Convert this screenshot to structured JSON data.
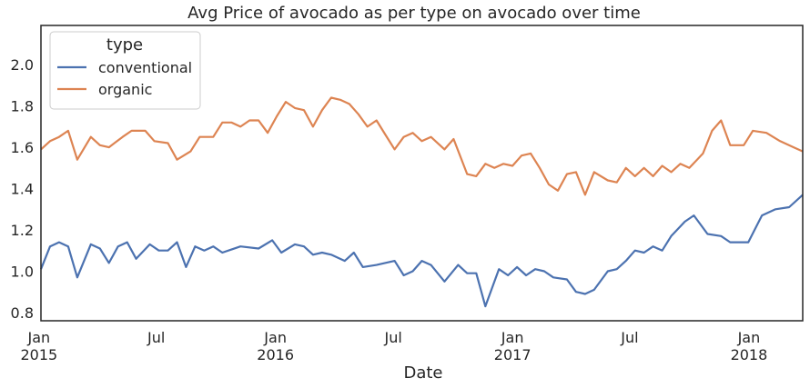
{
  "chart_data": {
    "type": "line",
    "title": "Avg Price of avocado as per type on avocado over time",
    "xlabel": "Date",
    "ylabel": "",
    "ylim": [
      0.76,
      2.19
    ],
    "xlim": [
      "2015-01-04",
      "2018-03-25"
    ],
    "yticks": [
      "0.8",
      "1.0",
      "1.2",
      "1.4",
      "1.6",
      "1.8",
      "2.0"
    ],
    "xticks": [
      {
        "date": "2015-01-01",
        "line1": "Jan",
        "line2": "2015"
      },
      {
        "date": "2015-07-01",
        "line1": "Jul",
        "line2": ""
      },
      {
        "date": "2016-01-01",
        "line1": "Jan",
        "line2": "2016"
      },
      {
        "date": "2016-07-01",
        "line1": "Jul",
        "line2": ""
      },
      {
        "date": "2017-01-01",
        "line1": "Jan",
        "line2": "2017"
      },
      {
        "date": "2017-07-01",
        "line1": "Jul",
        "line2": ""
      },
      {
        "date": "2018-01-01",
        "line1": "Jan",
        "line2": "2018"
      }
    ],
    "grid": false,
    "legend": {
      "title": "type",
      "placement": "top-left"
    },
    "series": [
      {
        "name": "conventional",
        "color": "#4c72b0",
        "points": [
          [
            "2015-01-04",
            1.01
          ],
          [
            "2015-01-18",
            1.12
          ],
          [
            "2015-02-01",
            1.14
          ],
          [
            "2015-02-15",
            1.12
          ],
          [
            "2015-03-01",
            0.97
          ],
          [
            "2015-03-22",
            1.13
          ],
          [
            "2015-04-05",
            1.11
          ],
          [
            "2015-04-19",
            1.04
          ],
          [
            "2015-05-03",
            1.12
          ],
          [
            "2015-05-17",
            1.14
          ],
          [
            "2015-05-31",
            1.06
          ],
          [
            "2015-06-21",
            1.13
          ],
          [
            "2015-07-05",
            1.1
          ],
          [
            "2015-07-19",
            1.1
          ],
          [
            "2015-08-02",
            1.14
          ],
          [
            "2015-08-16",
            1.02
          ],
          [
            "2015-08-30",
            1.12
          ],
          [
            "2015-09-13",
            1.1
          ],
          [
            "2015-09-27",
            1.12
          ],
          [
            "2015-10-11",
            1.09
          ],
          [
            "2015-11-08",
            1.12
          ],
          [
            "2015-12-06",
            1.11
          ],
          [
            "2015-12-27",
            1.15
          ],
          [
            "2016-01-10",
            1.09
          ],
          [
            "2016-01-31",
            1.13
          ],
          [
            "2016-02-14",
            1.12
          ],
          [
            "2016-02-28",
            1.08
          ],
          [
            "2016-03-13",
            1.09
          ],
          [
            "2016-03-27",
            1.08
          ],
          [
            "2016-04-17",
            1.05
          ],
          [
            "2016-05-01",
            1.09
          ],
          [
            "2016-05-15",
            1.02
          ],
          [
            "2016-06-05",
            1.03
          ],
          [
            "2016-07-03",
            1.05
          ],
          [
            "2016-07-17",
            0.98
          ],
          [
            "2016-07-31",
            1.0
          ],
          [
            "2016-08-14",
            1.05
          ],
          [
            "2016-08-28",
            1.03
          ],
          [
            "2016-09-18",
            0.95
          ],
          [
            "2016-10-09",
            1.03
          ],
          [
            "2016-10-23",
            0.99
          ],
          [
            "2016-11-06",
            0.99
          ],
          [
            "2016-11-20",
            0.83
          ],
          [
            "2016-12-11",
            1.01
          ],
          [
            "2016-12-25",
            0.98
          ],
          [
            "2017-01-08",
            1.02
          ],
          [
            "2017-01-22",
            0.98
          ],
          [
            "2017-02-05",
            1.01
          ],
          [
            "2017-02-19",
            1.0
          ],
          [
            "2017-03-05",
            0.97
          ],
          [
            "2017-03-26",
            0.96
          ],
          [
            "2017-04-09",
            0.9
          ],
          [
            "2017-04-23",
            0.89
          ],
          [
            "2017-05-07",
            0.91
          ],
          [
            "2017-05-28",
            1.0
          ],
          [
            "2017-06-11",
            1.01
          ],
          [
            "2017-06-25",
            1.05
          ],
          [
            "2017-07-09",
            1.1
          ],
          [
            "2017-07-23",
            1.09
          ],
          [
            "2017-08-06",
            1.12
          ],
          [
            "2017-08-20",
            1.1
          ],
          [
            "2017-09-03",
            1.17
          ],
          [
            "2017-09-24",
            1.24
          ],
          [
            "2017-10-08",
            1.27
          ],
          [
            "2017-10-29",
            1.18
          ],
          [
            "2017-11-19",
            1.17
          ],
          [
            "2017-12-03",
            1.14
          ],
          [
            "2017-12-31",
            1.14
          ],
          [
            "2018-01-21",
            1.27
          ],
          [
            "2018-02-11",
            1.3
          ],
          [
            "2018-03-04",
            1.31
          ],
          [
            "2018-03-25",
            1.37
          ]
        ]
      },
      {
        "name": "organic",
        "color": "#dd8452",
        "points": [
          [
            "2015-01-04",
            1.59
          ],
          [
            "2015-01-18",
            1.63
          ],
          [
            "2015-02-01",
            1.65
          ],
          [
            "2015-02-15",
            1.68
          ],
          [
            "2015-03-01",
            1.54
          ],
          [
            "2015-03-22",
            1.65
          ],
          [
            "2015-04-05",
            1.61
          ],
          [
            "2015-04-19",
            1.6
          ],
          [
            "2015-05-10",
            1.65
          ],
          [
            "2015-05-24",
            1.68
          ],
          [
            "2015-06-14",
            1.68
          ],
          [
            "2015-06-28",
            1.63
          ],
          [
            "2015-07-19",
            1.62
          ],
          [
            "2015-08-02",
            1.54
          ],
          [
            "2015-08-23",
            1.58
          ],
          [
            "2015-09-06",
            1.65
          ],
          [
            "2015-09-27",
            1.65
          ],
          [
            "2015-10-11",
            1.72
          ],
          [
            "2015-10-25",
            1.72
          ],
          [
            "2015-11-08",
            1.7
          ],
          [
            "2015-11-22",
            1.73
          ],
          [
            "2015-12-06",
            1.73
          ],
          [
            "2015-12-20",
            1.67
          ],
          [
            "2016-01-03",
            1.75
          ],
          [
            "2016-01-17",
            1.82
          ],
          [
            "2016-01-31",
            1.79
          ],
          [
            "2016-02-14",
            1.78
          ],
          [
            "2016-02-28",
            1.7
          ],
          [
            "2016-03-13",
            1.78
          ],
          [
            "2016-03-27",
            1.84
          ],
          [
            "2016-04-10",
            1.83
          ],
          [
            "2016-04-24",
            1.81
          ],
          [
            "2016-05-08",
            1.76
          ],
          [
            "2016-05-22",
            1.7
          ],
          [
            "2016-06-05",
            1.73
          ],
          [
            "2016-06-19",
            1.66
          ],
          [
            "2016-07-03",
            1.59
          ],
          [
            "2016-07-17",
            1.65
          ],
          [
            "2016-07-31",
            1.67
          ],
          [
            "2016-08-14",
            1.63
          ],
          [
            "2016-08-28",
            1.65
          ],
          [
            "2016-09-18",
            1.59
          ],
          [
            "2016-10-02",
            1.64
          ],
          [
            "2016-10-23",
            1.47
          ],
          [
            "2016-11-06",
            1.46
          ],
          [
            "2016-11-20",
            1.52
          ],
          [
            "2016-12-04",
            1.5
          ],
          [
            "2016-12-18",
            1.52
          ],
          [
            "2017-01-01",
            1.51
          ],
          [
            "2017-01-15",
            1.56
          ],
          [
            "2017-01-29",
            1.57
          ],
          [
            "2017-02-12",
            1.5
          ],
          [
            "2017-02-26",
            1.42
          ],
          [
            "2017-03-12",
            1.39
          ],
          [
            "2017-03-26",
            1.47
          ],
          [
            "2017-04-09",
            1.48
          ],
          [
            "2017-04-23",
            1.37
          ],
          [
            "2017-05-07",
            1.48
          ],
          [
            "2017-05-28",
            1.44
          ],
          [
            "2017-06-11",
            1.43
          ],
          [
            "2017-06-25",
            1.5
          ],
          [
            "2017-07-09",
            1.46
          ],
          [
            "2017-07-23",
            1.5
          ],
          [
            "2017-08-06",
            1.46
          ],
          [
            "2017-08-20",
            1.51
          ],
          [
            "2017-09-03",
            1.48
          ],
          [
            "2017-09-17",
            1.52
          ],
          [
            "2017-10-01",
            1.5
          ],
          [
            "2017-10-22",
            1.57
          ],
          [
            "2017-11-05",
            1.68
          ],
          [
            "2017-11-19",
            1.73
          ],
          [
            "2017-12-03",
            1.61
          ],
          [
            "2017-12-24",
            1.61
          ],
          [
            "2018-01-07",
            1.68
          ],
          [
            "2018-01-28",
            1.67
          ],
          [
            "2018-02-18",
            1.63
          ],
          [
            "2018-03-11",
            1.6
          ],
          [
            "2018-03-25",
            1.58
          ]
        ]
      }
    ]
  }
}
